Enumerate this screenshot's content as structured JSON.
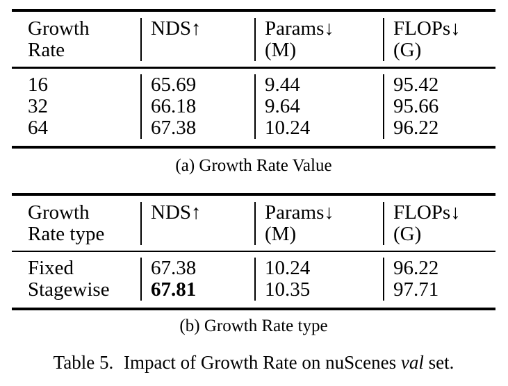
{
  "colors": {
    "background": "#ffffff",
    "text": "#000000",
    "rule": "#000000"
  },
  "table_a": {
    "headers": [
      [
        "Growth",
        "Rate"
      ],
      [
        "NDS↑",
        ""
      ],
      [
        "Params↓",
        "(M)"
      ],
      [
        "FLOPs↓",
        "(G)"
      ]
    ],
    "rows": [
      [
        "16",
        "65.69",
        "9.44",
        "95.42"
      ],
      [
        "32",
        "66.18",
        "9.64",
        "95.66"
      ],
      [
        "64",
        "67.38",
        "10.24",
        "96.22"
      ]
    ],
    "caption": "(a) Growth Rate Value"
  },
  "table_b": {
    "headers": [
      [
        "Growth",
        "Rate type"
      ],
      [
        "NDS↑",
        ""
      ],
      [
        "Params↓",
        "(M)"
      ],
      [
        "FLOPs↓",
        "(G)"
      ]
    ],
    "rows": [
      [
        "Fixed",
        "67.38",
        "10.24",
        "96.22"
      ],
      [
        "Stagewise",
        "67.81",
        "10.35",
        "97.71"
      ]
    ],
    "caption": "(b) Growth Rate type"
  },
  "main_caption": {
    "label": "Table 5.",
    "before_italic": "Impact of Growth Rate on nuScenes",
    "italic": "val",
    "after_italic": "set."
  }
}
